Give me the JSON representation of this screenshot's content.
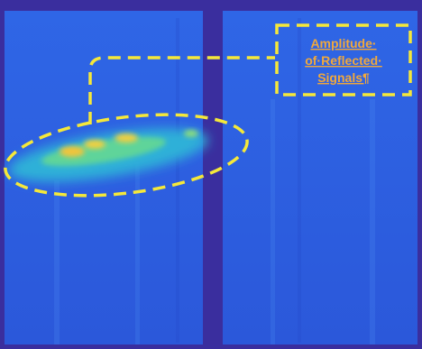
{
  "annotation": {
    "lines": [
      "Amplitude·",
      "of·Reflected·",
      "Signals¶"
    ]
  }
}
